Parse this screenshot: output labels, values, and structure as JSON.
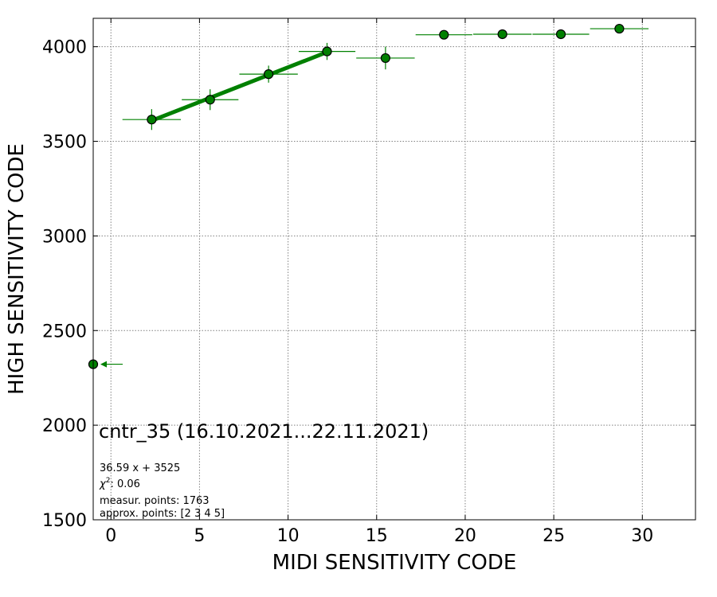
{
  "chart_data": {
    "type": "scatter",
    "xlabel": "MIDI SENSITIVITY CODE",
    "ylabel": "HIGH SENSITIVITY CODE",
    "xlim": [
      -1,
      33
    ],
    "ylim": [
      1500,
      4150
    ],
    "xticks": [
      0,
      5,
      10,
      15,
      20,
      25,
      30
    ],
    "yticks": [
      1500,
      2000,
      2500,
      3000,
      3500,
      4000
    ],
    "grid": true,
    "colors": {
      "marker": "#008000",
      "fit": "#008000",
      "grid": "#808080"
    },
    "points": [
      {
        "x": -1.0,
        "y": 2322,
        "xerr": 0.0,
        "yerr": 0,
        "left_arrow": true
      },
      {
        "x": 2.3,
        "y": 3615,
        "xerr": 1.65,
        "yerr": 55
      },
      {
        "x": 5.6,
        "y": 3720,
        "xerr": 1.6,
        "yerr": 55
      },
      {
        "x": 8.9,
        "y": 3855,
        "xerr": 1.65,
        "yerr": 45
      },
      {
        "x": 12.2,
        "y": 3975,
        "xerr": 1.6,
        "yerr": 45
      },
      {
        "x": 15.5,
        "y": 3940,
        "xerr": 1.65,
        "yerr": 60
      },
      {
        "x": 18.8,
        "y": 4063,
        "xerr": 1.6,
        "yerr": 0
      },
      {
        "x": 22.1,
        "y": 4066,
        "xerr": 1.65,
        "yerr": 0
      },
      {
        "x": 25.4,
        "y": 4066,
        "xerr": 1.6,
        "yerr": 0
      },
      {
        "x": 28.7,
        "y": 4095,
        "xerr": 1.65,
        "yerr": 0
      }
    ],
    "fit": {
      "slope": 36.59,
      "intercept": 3525,
      "x_range": [
        2.3,
        12.2
      ]
    },
    "annotations": {
      "title": "cntr_35 (16.10.2021...22.11.2021)",
      "formula": "36.59 x + 3525",
      "chi2_label": "χ",
      "chi2_sup": "2",
      "chi2_value": ": 0.06",
      "measur": "measur. points: 1763",
      "approx": "approx. points: [2 3 4 5]"
    }
  }
}
